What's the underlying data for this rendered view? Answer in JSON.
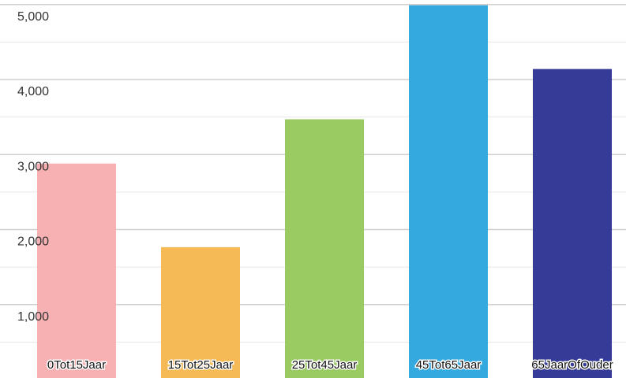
{
  "chart_data": {
    "type": "bar",
    "categories": [
      "0Tot15Jaar",
      "15Tot25Jaar",
      "25Tot45Jaar",
      "45Tot65Jaar",
      "65JaarOfOuder"
    ],
    "values": [
      2880,
      1765,
      3470,
      4990,
      4140
    ],
    "colors": [
      "#f7b1b3",
      "#f5ba55",
      "#9acb62",
      "#33a9df",
      "#353b96"
    ],
    "ylim": [
      0,
      5060
    ],
    "yticks": [
      {
        "value": 1000,
        "label": "1,000"
      },
      {
        "value": 2000,
        "label": "2,000"
      },
      {
        "value": 3000,
        "label": "3,000"
      },
      {
        "value": 4000,
        "label": "4,000"
      },
      {
        "value": 5000,
        "label": "5,000"
      }
    ],
    "yminorticks": [
      500,
      1500,
      2500,
      3500,
      4500
    ],
    "grid": true
  }
}
